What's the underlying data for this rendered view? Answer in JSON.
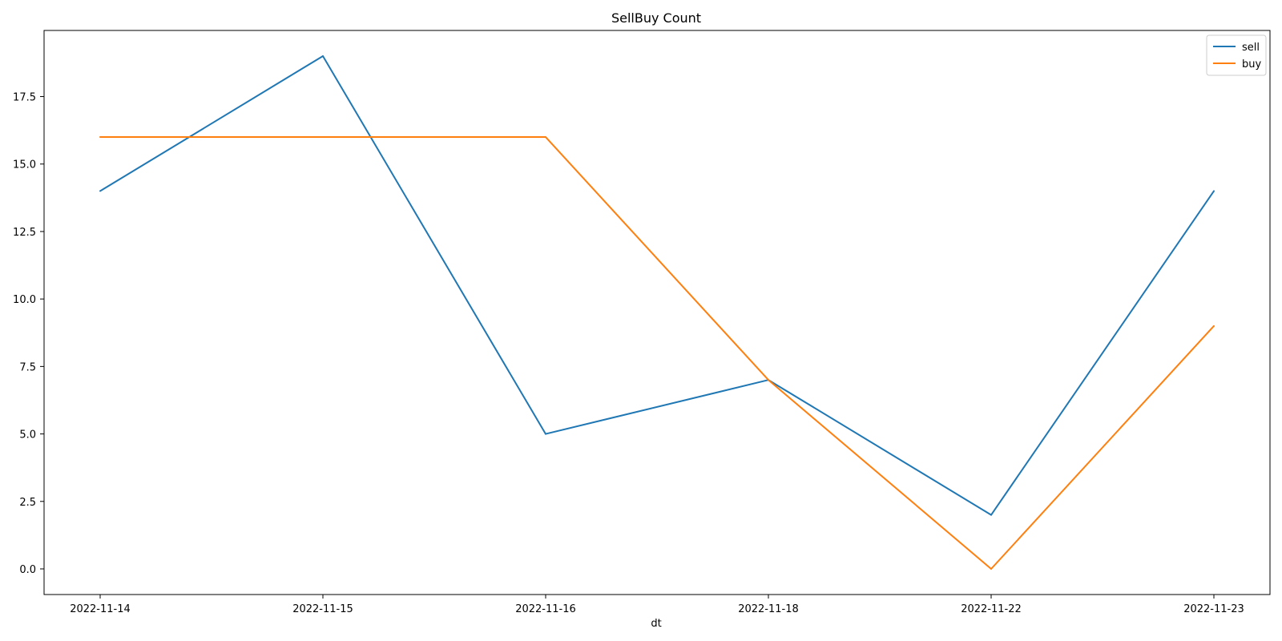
{
  "chart_data": {
    "type": "line",
    "title": "SellBuy Count",
    "xlabel": "dt",
    "ylabel": "",
    "categories": [
      "2022-11-14",
      "2022-11-15",
      "2022-11-16",
      "2022-11-18",
      "2022-11-22",
      "2022-11-23"
    ],
    "series": [
      {
        "name": "sell",
        "color": "#1f77b4",
        "values": [
          14,
          19,
          5,
          7,
          2,
          14
        ]
      },
      {
        "name": "buy",
        "color": "#ff7f0e",
        "values": [
          16,
          16,
          16,
          7,
          0,
          9
        ]
      }
    ],
    "y_ticks": [
      0.0,
      2.5,
      5.0,
      7.5,
      10.0,
      12.5,
      15.0,
      17.5
    ],
    "y_tick_labels": [
      "0.0",
      "2.5",
      "5.0",
      "7.5",
      "10.0",
      "12.5",
      "15.0",
      "17.5"
    ],
    "ylim": [
      -0.95,
      19.95
    ],
    "grid": false,
    "legend_position": "top-right"
  }
}
